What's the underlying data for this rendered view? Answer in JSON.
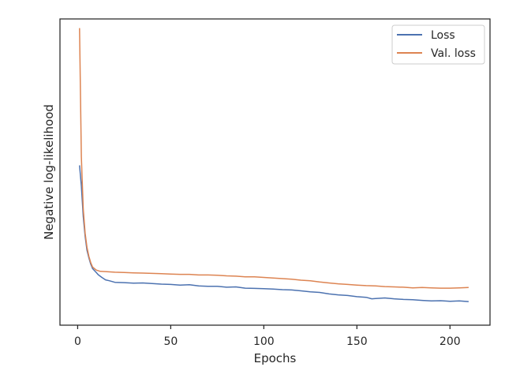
{
  "chart_data": {
    "type": "line",
    "title": "",
    "xlabel": "Epochs",
    "ylabel": "Negative log-likelihood",
    "xlim": [
      -9.5,
      221.5
    ],
    "ylim": [
      0,
      1
    ],
    "x_ticks": [
      0,
      50,
      100,
      150,
      200
    ],
    "y_ticks_shown": false,
    "grid": false,
    "legend": {
      "placement": "top-right"
    },
    "series": [
      {
        "name": "Loss",
        "color": "#4c72b0",
        "points": [
          [
            1,
            0.522
          ],
          [
            2,
            0.455
          ],
          [
            3,
            0.355
          ],
          [
            4,
            0.29
          ],
          [
            5,
            0.245
          ],
          [
            6,
            0.22
          ],
          [
            7,
            0.2
          ],
          [
            8,
            0.185
          ],
          [
            10,
            0.172
          ],
          [
            11,
            0.165
          ],
          [
            13,
            0.156
          ],
          [
            15,
            0.148
          ],
          [
            17,
            0.145
          ],
          [
            20,
            0.14
          ],
          [
            25,
            0.139
          ],
          [
            30,
            0.137
          ],
          [
            35,
            0.138
          ],
          [
            40,
            0.136
          ],
          [
            45,
            0.134
          ],
          [
            50,
            0.133
          ],
          [
            55,
            0.131
          ],
          [
            60,
            0.132
          ],
          [
            65,
            0.128
          ],
          [
            70,
            0.127
          ],
          [
            75,
            0.127
          ],
          [
            80,
            0.124
          ],
          [
            85,
            0.125
          ],
          [
            90,
            0.121
          ],
          [
            95,
            0.12
          ],
          [
            100,
            0.119
          ],
          [
            105,
            0.118
          ],
          [
            110,
            0.116
          ],
          [
            115,
            0.115
          ],
          [
            120,
            0.112
          ],
          [
            125,
            0.109
          ],
          [
            130,
            0.107
          ],
          [
            135,
            0.102
          ],
          [
            140,
            0.099
          ],
          [
            145,
            0.097
          ],
          [
            150,
            0.093
          ],
          [
            155,
            0.091
          ],
          [
            158,
            0.086
          ],
          [
            160,
            0.087
          ],
          [
            165,
            0.089
          ],
          [
            170,
            0.086
          ],
          [
            175,
            0.084
          ],
          [
            180,
            0.083
          ],
          [
            185,
            0.081
          ],
          [
            190,
            0.079
          ],
          [
            195,
            0.08
          ],
          [
            200,
            0.078
          ],
          [
            205,
            0.079
          ],
          [
            210,
            0.077
          ]
        ]
      },
      {
        "name": "Val. loss",
        "color": "#dd8452",
        "points": [
          [
            1,
            0.97
          ],
          [
            2,
            0.55
          ],
          [
            3,
            0.38
          ],
          [
            4,
            0.3
          ],
          [
            5,
            0.255
          ],
          [
            6,
            0.225
          ],
          [
            7,
            0.205
          ],
          [
            8,
            0.19
          ],
          [
            10,
            0.18
          ],
          [
            12,
            0.176
          ],
          [
            15,
            0.175
          ],
          [
            20,
            0.173
          ],
          [
            25,
            0.172
          ],
          [
            30,
            0.171
          ],
          [
            35,
            0.17
          ],
          [
            40,
            0.169
          ],
          [
            45,
            0.168
          ],
          [
            50,
            0.167
          ],
          [
            55,
            0.166
          ],
          [
            60,
            0.166
          ],
          [
            65,
            0.164
          ],
          [
            70,
            0.164
          ],
          [
            75,
            0.163
          ],
          [
            80,
            0.161
          ],
          [
            85,
            0.16
          ],
          [
            90,
            0.158
          ],
          [
            95,
            0.158
          ],
          [
            100,
            0.156
          ],
          [
            105,
            0.154
          ],
          [
            110,
            0.152
          ],
          [
            115,
            0.15
          ],
          [
            120,
            0.147
          ],
          [
            125,
            0.145
          ],
          [
            130,
            0.141
          ],
          [
            135,
            0.138
          ],
          [
            140,
            0.135
          ],
          [
            145,
            0.133
          ],
          [
            150,
            0.131
          ],
          [
            155,
            0.129
          ],
          [
            160,
            0.128
          ],
          [
            165,
            0.126
          ],
          [
            170,
            0.125
          ],
          [
            175,
            0.124
          ],
          [
            180,
            0.122
          ],
          [
            185,
            0.123
          ],
          [
            190,
            0.122
          ],
          [
            195,
            0.121
          ],
          [
            200,
            0.121
          ],
          [
            205,
            0.122
          ],
          [
            210,
            0.123
          ]
        ]
      }
    ]
  }
}
